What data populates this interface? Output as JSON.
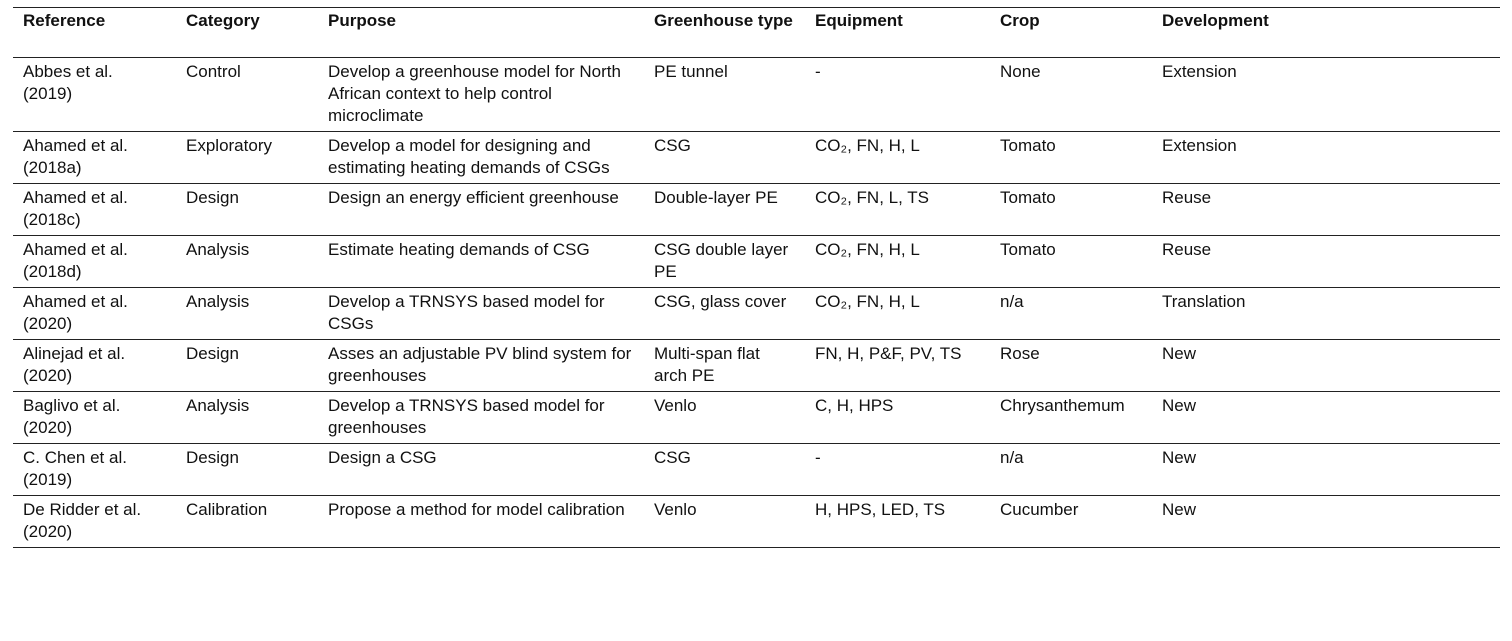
{
  "table": {
    "headers": {
      "reference": "Reference",
      "category": "Category",
      "purpose": "Purpose",
      "greenhouse_type": "Greenhouse type",
      "equipment": "Equipment",
      "crop": "Crop",
      "development": "Development"
    },
    "rows": [
      {
        "reference": "Abbes et al. (2019)",
        "category": "Control",
        "purpose": "Develop a greenhouse model for North African context to help control microclimate",
        "greenhouse_type": "PE tunnel",
        "equipment": "-",
        "crop": "None",
        "development": "Extension"
      },
      {
        "reference": "Ahamed et al. (2018a)",
        "category": "Exploratory",
        "purpose": "Develop a model for designing and estimating heating demands of CSGs",
        "greenhouse_type": "CSG",
        "equipment": "CO₂, FN, H, L",
        "crop": "Tomato",
        "development": "Extension"
      },
      {
        "reference": "Ahamed et al. (2018c)",
        "category": "Design",
        "purpose": "Design an energy efficient greenhouse",
        "greenhouse_type": "Double-layer PE",
        "equipment": "CO₂, FN, L, TS",
        "crop": "Tomato",
        "development": "Reuse"
      },
      {
        "reference": "Ahamed et al. (2018d)",
        "category": "Analysis",
        "purpose": "Estimate heating demands of CSG",
        "greenhouse_type": "CSG double layer PE",
        "equipment": "CO₂, FN, H, L",
        "crop": "Tomato",
        "development": "Reuse"
      },
      {
        "reference": "Ahamed et al. (2020)",
        "category": "Analysis",
        "purpose": "Develop a TRNSYS based model for CSGs",
        "greenhouse_type": "CSG, glass cover",
        "equipment": "CO₂, FN, H, L",
        "crop": "n/a",
        "development": "Translation"
      },
      {
        "reference": "Alinejad et al. (2020)",
        "category": "Design",
        "purpose": "Asses an adjustable PV blind system for greenhouses",
        "greenhouse_type": "Multi-span flat arch PE",
        "equipment": "FN, H, P&F, PV, TS",
        "crop": "Rose",
        "development": "New"
      },
      {
        "reference": "Baglivo et al. (2020)",
        "category": "Analysis",
        "purpose": "Develop a TRNSYS based model for greenhouses",
        "greenhouse_type": "Venlo",
        "equipment": "C, H, HPS",
        "crop": "Chrysanthemum",
        "development": "New"
      },
      {
        "reference": "C. Chen et al. (2019)",
        "category": "Design",
        "purpose": "Design a CSG",
        "greenhouse_type": "CSG",
        "equipment": "-",
        "crop": "n/a",
        "development": "New"
      },
      {
        "reference": "De Ridder et al. (2020)",
        "category": "Calibration",
        "purpose": "Propose a method for model calibration",
        "greenhouse_type": "Venlo",
        "equipment": "H, HPS, LED, TS",
        "crop": "Cucumber",
        "development": "New"
      }
    ]
  }
}
